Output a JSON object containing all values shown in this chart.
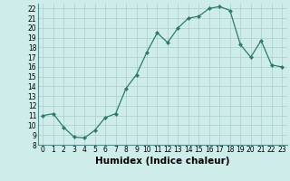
{
  "x": [
    0,
    1,
    2,
    3,
    4,
    5,
    6,
    7,
    8,
    9,
    10,
    11,
    12,
    13,
    14,
    15,
    16,
    17,
    18,
    19,
    20,
    21,
    22,
    23
  ],
  "y": [
    11,
    11.2,
    9.8,
    8.8,
    8.7,
    9.5,
    10.8,
    11.2,
    13.8,
    15.2,
    17.5,
    19.5,
    18.5,
    20,
    21,
    21.2,
    22,
    22.2,
    21.8,
    18.3,
    17,
    18.7,
    16.2,
    16
  ],
  "line_color": "#2d7a6e",
  "marker": "D",
  "markersize": 2.0,
  "linewidth": 0.9,
  "bg_color": "#ceecea",
  "grid_color": "#aacfcc",
  "xlabel": "Humidex (Indice chaleur)",
  "xlim": [
    -0.5,
    23.5
  ],
  "ylim": [
    8,
    22.5
  ],
  "yticks": [
    8,
    9,
    10,
    11,
    12,
    13,
    14,
    15,
    16,
    17,
    18,
    19,
    20,
    21,
    22
  ],
  "xticks": [
    0,
    1,
    2,
    3,
    4,
    5,
    6,
    7,
    8,
    9,
    10,
    11,
    12,
    13,
    14,
    15,
    16,
    17,
    18,
    19,
    20,
    21,
    22,
    23
  ],
  "tick_label_fontsize": 5.5,
  "xlabel_fontsize": 7.5,
  "xlabel_fontweight": "bold"
}
